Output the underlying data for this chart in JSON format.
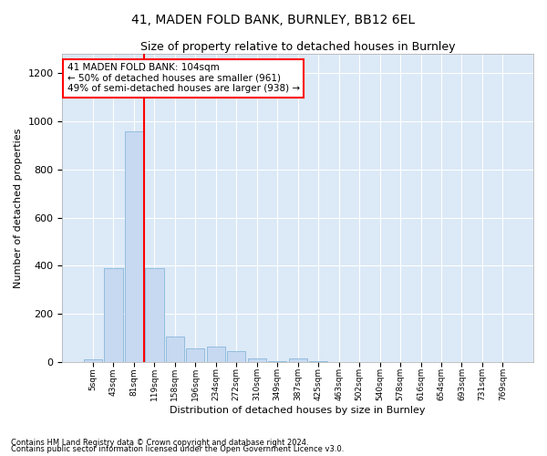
{
  "title": "41, MADEN FOLD BANK, BURNLEY, BB12 6EL",
  "subtitle": "Size of property relative to detached houses in Burnley",
  "xlabel": "Distribution of detached houses by size in Burnley",
  "ylabel": "Number of detached properties",
  "annotation_text": "41 MADEN FOLD BANK: 104sqm\n← 50% of detached houses are smaller (961)\n49% of semi-detached houses are larger (938) →",
  "footer1": "Contains HM Land Registry data © Crown copyright and database right 2024.",
  "footer2": "Contains public sector information licensed under the Open Government Licence v3.0.",
  "bar_labels": [
    "5sqm",
    "43sqm",
    "81sqm",
    "119sqm",
    "158sqm",
    "196sqm",
    "234sqm",
    "272sqm",
    "310sqm",
    "349sqm",
    "387sqm",
    "425sqm",
    "463sqm",
    "502sqm",
    "540sqm",
    "578sqm",
    "616sqm",
    "654sqm",
    "693sqm",
    "731sqm",
    "769sqm"
  ],
  "bar_values": [
    10,
    390,
    960,
    390,
    105,
    55,
    65,
    45,
    15,
    3,
    15,
    3,
    0,
    0,
    0,
    0,
    0,
    0,
    0,
    0,
    0
  ],
  "bar_color": "#c6d9f1",
  "bar_edge_color": "#7bafd4",
  "redline_x": 2.5,
  "ylim": [
    0,
    1280
  ],
  "yticks": [
    0,
    200,
    400,
    600,
    800,
    1000,
    1200
  ],
  "annotation_box_color": "white",
  "annotation_box_edgecolor": "red",
  "redline_color": "red",
  "background_color": "#dce9f7",
  "title_fontsize": 10,
  "subtitle_fontsize": 9,
  "xlabel_fontsize": 8,
  "ylabel_fontsize": 8,
  "figwidth": 6.0,
  "figheight": 5.0,
  "dpi": 100
}
